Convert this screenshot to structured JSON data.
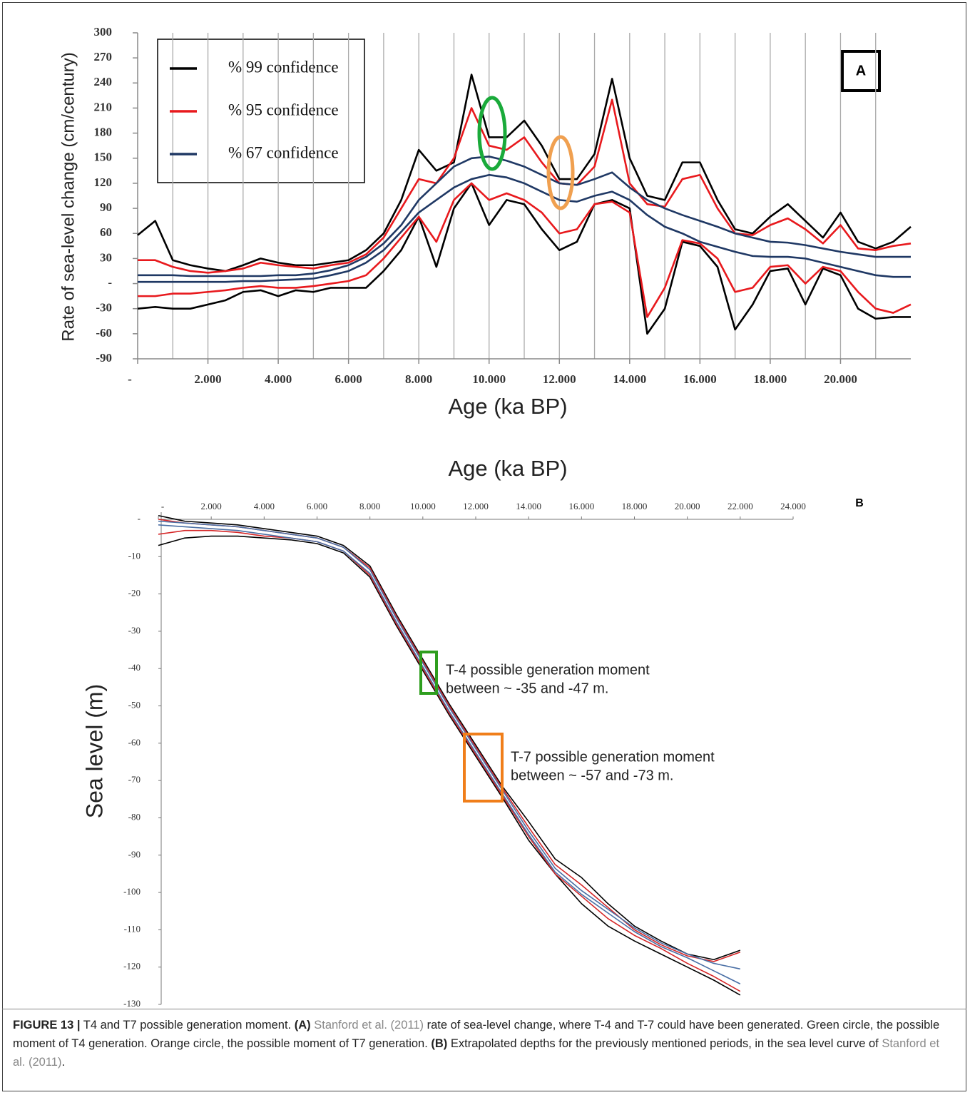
{
  "chart_data": [
    {
      "type": "line",
      "xlabel": "Age (ka BP)",
      "ylabel": "Rate of sea-level change (cm/century)",
      "panel_label": "A",
      "xlim": [
        0,
        22000
      ],
      "ylim": [
        -90,
        300
      ],
      "xticks": [
        {
          "value": 0,
          "label": "-"
        },
        {
          "value": 2000,
          "label": "2.000"
        },
        {
          "value": 4000,
          "label": "4.000"
        },
        {
          "value": 6000,
          "label": "6.000"
        },
        {
          "value": 8000,
          "label": "8.000"
        },
        {
          "value": 10000,
          "label": "10.000"
        },
        {
          "value": 12000,
          "label": "12.000"
        },
        {
          "value": 14000,
          "label": "14.000"
        },
        {
          "value": 16000,
          "label": "16.000"
        },
        {
          "value": 18000,
          "label": "18.000"
        },
        {
          "value": 20000,
          "label": "20.000"
        }
      ],
      "x_gridlines": [
        1000,
        2000,
        3000,
        4000,
        5000,
        6000,
        7000,
        8000,
        9000,
        10000,
        11000,
        12000,
        13000,
        14000,
        15000,
        16000,
        17000,
        18000,
        19000,
        20000,
        21000
      ],
      "yticks": [
        300,
        270,
        240,
        210,
        180,
        150,
        120,
        90,
        60,
        30,
        {
          "value": 0,
          "label": "-"
        },
        -30,
        -60,
        -90
      ],
      "legend": "upper-left",
      "x": [
        0,
        500,
        1000,
        1500,
        2000,
        2500,
        3000,
        3500,
        4000,
        4500,
        5000,
        5500,
        6000,
        6500,
        7000,
        7500,
        8000,
        8500,
        9000,
        9500,
        10000,
        10500,
        11000,
        11500,
        12000,
        12500,
        13000,
        13500,
        14000,
        14500,
        15000,
        15500,
        16000,
        16500,
        17000,
        17500,
        18000,
        18500,
        19000,
        19500,
        20000,
        20500,
        21000,
        21500,
        22000
      ],
      "series": [
        {
          "name": "% 99 confidence",
          "color": "#000000",
          "upper": [
            58,
            75,
            28,
            22,
            18,
            15,
            22,
            30,
            25,
            22,
            22,
            25,
            28,
            40,
            60,
            100,
            160,
            135,
            145,
            250,
            175,
            175,
            195,
            165,
            125,
            125,
            155,
            245,
            150,
            105,
            100,
            145,
            145,
            100,
            65,
            60,
            80,
            95,
            75,
            55,
            85,
            50,
            42,
            50,
            68
          ],
          "lower": [
            -30,
            -28,
            -30,
            -30,
            -25,
            -20,
            -10,
            -8,
            -15,
            -8,
            -10,
            -5,
            -5,
            -5,
            15,
            40,
            80,
            20,
            90,
            120,
            70,
            100,
            95,
            65,
            40,
            50,
            95,
            100,
            90,
            -60,
            -30,
            50,
            45,
            20,
            -55,
            -25,
            15,
            18,
            -25,
            18,
            10,
            -30,
            -42,
            -40,
            -40
          ]
        },
        {
          "name": "% 95 confidence",
          "color": "#e8191d",
          "upper": [
            28,
            28,
            20,
            15,
            13,
            15,
            18,
            25,
            22,
            20,
            18,
            22,
            25,
            35,
            55,
            90,
            125,
            120,
            150,
            210,
            165,
            160,
            175,
            145,
            120,
            118,
            140,
            220,
            120,
            95,
            92,
            125,
            130,
            90,
            60,
            58,
            70,
            78,
            65,
            48,
            70,
            42,
            40,
            45,
            48
          ],
          "lower": [
            -15,
            -15,
            -12,
            -12,
            -10,
            -8,
            -5,
            -3,
            -5,
            -5,
            -3,
            0,
            3,
            10,
            30,
            55,
            80,
            50,
            100,
            120,
            100,
            108,
            100,
            85,
            60,
            65,
            95,
            98,
            85,
            -40,
            -5,
            52,
            48,
            30,
            -10,
            -5,
            20,
            22,
            0,
            20,
            15,
            -10,
            -30,
            -35,
            -25
          ]
        },
        {
          "name": "% 67 confidence",
          "color": "#1f3864",
          "upper": [
            10,
            10,
            10,
            9,
            9,
            9,
            9,
            9,
            10,
            10,
            12,
            16,
            22,
            32,
            48,
            70,
            100,
            120,
            140,
            150,
            152,
            147,
            140,
            130,
            120,
            118,
            125,
            133,
            115,
            100,
            90,
            82,
            75,
            68,
            60,
            55,
            50,
            49,
            46,
            42,
            38,
            35,
            32,
            32,
            32
          ],
          "lower": [
            2,
            2,
            2,
            2,
            2,
            2,
            3,
            3,
            4,
            5,
            6,
            10,
            15,
            25,
            40,
            62,
            85,
            100,
            115,
            125,
            130,
            127,
            120,
            110,
            100,
            98,
            105,
            110,
            100,
            82,
            68,
            60,
            50,
            44,
            38,
            33,
            32,
            32,
            30,
            25,
            20,
            15,
            10,
            8,
            8
          ]
        }
      ]
    },
    {
      "type": "line",
      "title": "Age (ka BP)",
      "ylabel": "Sea level (m)",
      "panel_label": "B",
      "xlim": [
        0,
        24000
      ],
      "ylim": [
        -130,
        0
      ],
      "xticks": [
        {
          "value": 0,
          "label": "-"
        },
        {
          "value": 2000,
          "label": "2.000"
        },
        {
          "value": 4000,
          "label": "4.000"
        },
        {
          "value": 6000,
          "label": "6.000"
        },
        {
          "value": 8000,
          "label": "8.000"
        },
        {
          "value": 10000,
          "label": "10.000"
        },
        {
          "value": 12000,
          "label": "12.000"
        },
        {
          "value": 14000,
          "label": "14.000"
        },
        {
          "value": 16000,
          "label": "16.000"
        },
        {
          "value": 18000,
          "label": "18.000"
        },
        {
          "value": 20000,
          "label": "20.000"
        },
        {
          "value": 22000,
          "label": "22.000"
        },
        {
          "value": 24000,
          "label": "24.000"
        }
      ],
      "yticks": [
        {
          "value": 0,
          "label": "-"
        },
        -10,
        -20,
        -30,
        -40,
        -50,
        -60,
        -70,
        -80,
        -90,
        -100,
        -110,
        -120,
        -130
      ],
      "x": [
        0,
        1000,
        2000,
        3000,
        4000,
        5000,
        6000,
        7000,
        8000,
        9000,
        10000,
        11000,
        12000,
        13000,
        14000,
        15000,
        16000,
        17000,
        18000,
        19000,
        20000,
        21000,
        22000
      ],
      "series": [
        {
          "color": "#000000",
          "values": [
            1,
            -0.5,
            -1,
            -1.5,
            -2.5,
            -3.5,
            -4.5,
            -7,
            -12.5,
            -25.5,
            -37.5,
            -49.5,
            -60.5,
            -71.5,
            -81,
            -91,
            -96,
            -103,
            -109,
            -113,
            -116.5,
            -118,
            -115.5
          ]
        },
        {
          "color": "#000000",
          "values": [
            -7,
            -5,
            -4.5,
            -4.5,
            -5,
            -5.5,
            -6.5,
            -9,
            -15.5,
            -28.5,
            -40.5,
            -52.5,
            -63.5,
            -74.5,
            -86,
            -95,
            -103,
            -109,
            -113,
            -116.5,
            -120,
            -123.5,
            -127.5
          ]
        },
        {
          "color": "#d62728",
          "values": [
            0,
            -1,
            -1.5,
            -2,
            -3,
            -4,
            -5,
            -7.5,
            -13,
            -26,
            -38,
            -50,
            -61,
            -72,
            -82.5,
            -92.5,
            -98,
            -104,
            -110,
            -114,
            -117,
            -118.5,
            -116
          ]
        },
        {
          "color": "#d62728",
          "values": [
            -4,
            -3,
            -3,
            -3.5,
            -4.5,
            -5,
            -6,
            -8.5,
            -15,
            -28,
            -40,
            -52,
            -63,
            -74,
            -85,
            -95,
            -101,
            -107,
            -111.5,
            -115,
            -119,
            -122.5,
            -126.5
          ]
        },
        {
          "color": "#4a6fa5",
          "values": [
            -0.5,
            -1,
            -1.5,
            -2,
            -3,
            -4,
            -5,
            -7.5,
            -13.5,
            -26.5,
            -38.5,
            -50.5,
            -61.5,
            -72.5,
            -83.5,
            -93.5,
            -99.5,
            -104.5,
            -109.5,
            -113.5,
            -116.5,
            -119,
            -120.5
          ]
        },
        {
          "color": "#4a6fa5",
          "values": [
            -1.5,
            -2,
            -2.5,
            -3,
            -4,
            -5,
            -6,
            -8.5,
            -14.5,
            -27.5,
            -39.5,
            -51.5,
            -62.5,
            -73.5,
            -84.5,
            -94.5,
            -100.5,
            -105.5,
            -110.5,
            -114.5,
            -117.5,
            -121,
            -124.5
          ]
        }
      ],
      "annotations": [
        {
          "lines": [
            "T-4 possible generation moment",
            "between ~ -35 and -47 m."
          ],
          "color": "#2e9e1e"
        },
        {
          "lines": [
            "T-7 possible generation moment",
            "between ~ -57 and -73 m."
          ],
          "color": "#f07e1a"
        }
      ]
    }
  ],
  "caption": [
    {
      "text": "FIGURE 13 |",
      "style": "bold"
    },
    {
      "text": " T4 and T7 possible generation moment. ",
      "style": "plain"
    },
    {
      "text": "(A)",
      "style": "bold"
    },
    {
      "text": " ",
      "style": "plain"
    },
    {
      "text": "Stanford et al. (2011)",
      "style": "link"
    },
    {
      "text": " rate of sea-level change, where T-4 and T-7 could have been generated. Green circle, the possible moment of T4 generation. Orange circle, the possible moment of T7 generation. ",
      "style": "plain"
    },
    {
      "text": "(B)",
      "style": "bold"
    },
    {
      "text": " Extrapolated depths for the previously mentioned periods, in the sea level curve of ",
      "style": "plain"
    },
    {
      "text": "Stanford et al. (2011)",
      "style": "link"
    },
    {
      "text": ".",
      "style": "plain"
    }
  ]
}
